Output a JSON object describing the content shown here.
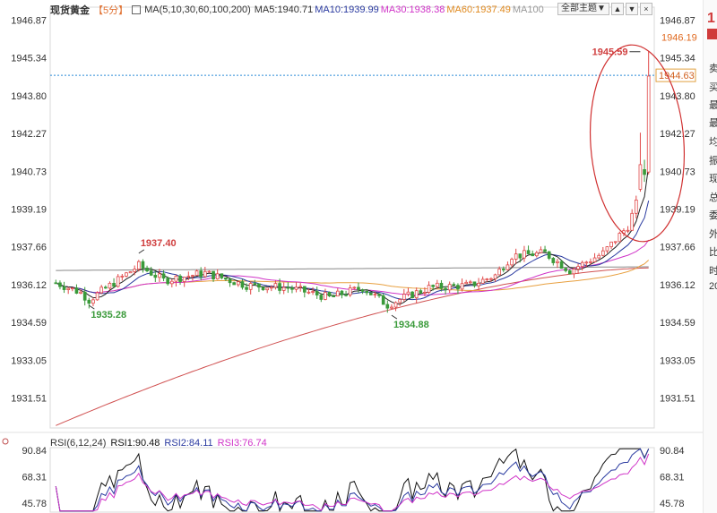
{
  "header": {
    "instrument": "现货黄金",
    "period": "【5分】",
    "ma_params": "MA(5,10,30,60,100,200)",
    "ma_values": [
      {
        "label": "MA5:1940.71",
        "color": "#333333"
      },
      {
        "label": "MA10:1939.99",
        "color": "#2a3aa0"
      },
      {
        "label": "MA30:1938.38",
        "color": "#d034c8"
      },
      {
        "label": "MA60:1937.49",
        "color": "#e08a20"
      },
      {
        "label": "MA100",
        "color": "#999999"
      }
    ],
    "theme_button": "全部主题▼"
  },
  "colors": {
    "up": "#e04848",
    "down": "#3a9a3a",
    "ma5": "#222222",
    "ma10": "#2a3aa0",
    "ma30": "#d034c8",
    "ma60": "#e8a040",
    "ma100": "#888888",
    "ma200": "#d05050",
    "rsi1": "#111111",
    "rsi2": "#2a3aa0",
    "rsi3": "#d034c8",
    "current_line": "#2a8ad8",
    "annotation": "#d03030"
  },
  "chart_data": {
    "type": "candlestick",
    "y_ticks": [
      "1946.87",
      "1945.34",
      "1943.80",
      "1942.27",
      "1940.73",
      "1939.19",
      "1937.66",
      "1936.12",
      "1934.59",
      "1933.05",
      "1931.51"
    ],
    "ylim": [
      1930.3,
      1947.4
    ],
    "annotations": [
      {
        "label": "1937.40",
        "value": 1937.4,
        "kind": "high",
        "bar": 20
      },
      {
        "label": "1935.28",
        "value": 1935.28,
        "kind": "low",
        "bar": 8
      },
      {
        "label": "1934.88",
        "value": 1934.88,
        "kind": "low",
        "bar": 81
      },
      {
        "label": "1945.59",
        "value": 1945.59,
        "kind": "high",
        "bar": 141
      }
    ],
    "current_price": {
      "label": "1944.63",
      "value": 1944.63
    },
    "right_top_label": "1946.19",
    "num_bars": 144,
    "ma200_range": [
      1930.4,
      1936.8
    ],
    "rsi": {
      "label": "RSI(6,12,24)",
      "values": [
        {
          "label": "RSI1:90.48"
        },
        {
          "label": "RSI2:84.11"
        },
        {
          "label": "RSI3:76.74"
        }
      ],
      "y_ticks": [
        "90.84",
        "68.31",
        "45.78"
      ],
      "ylim": [
        38,
        93
      ]
    }
  },
  "sidebar": {
    "big_label": "1",
    "labels": [
      "卖",
      "买",
      "最",
      "最",
      "均",
      "振",
      "现",
      "总",
      "委",
      "外",
      "比",
      "时",
      "20"
    ]
  }
}
